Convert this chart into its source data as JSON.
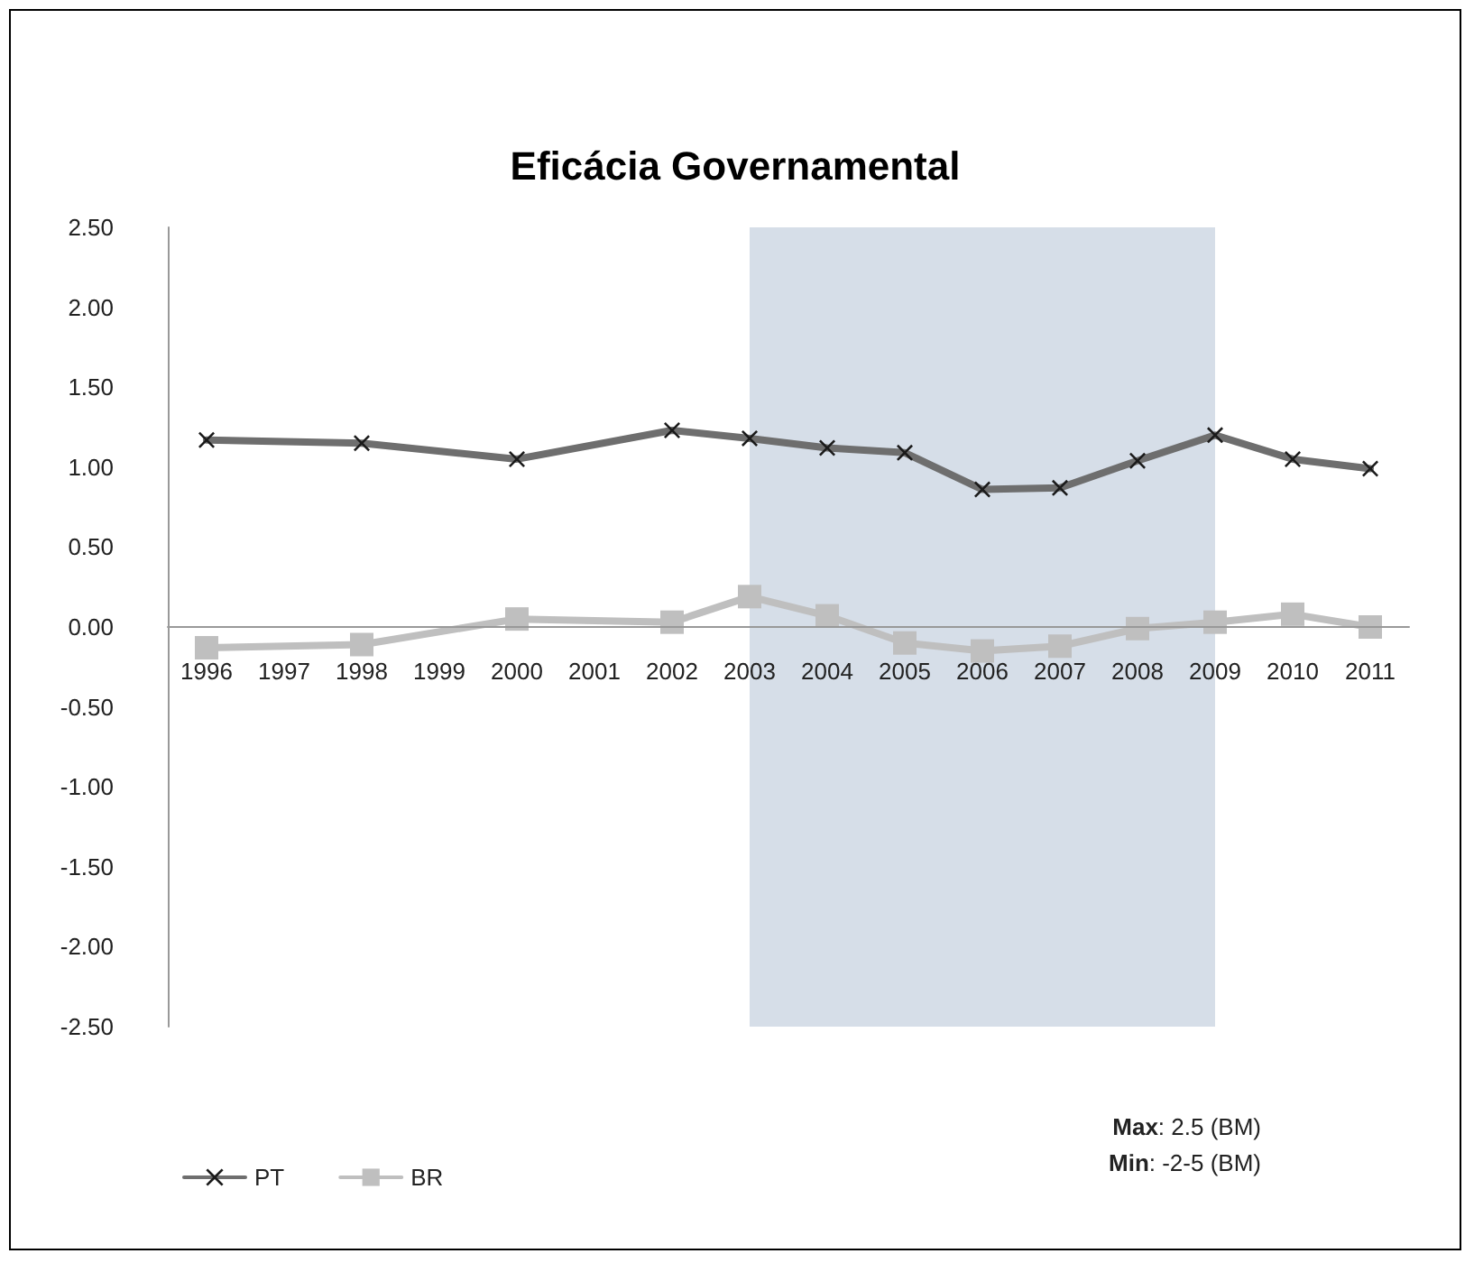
{
  "chart_data": {
    "type": "line",
    "title": "Eficácia Governamental",
    "categories": [
      "1996",
      "1997",
      "1998",
      "1999",
      "2000",
      "2001",
      "2002",
      "2003",
      "2004",
      "2005",
      "2006",
      "2007",
      "2008",
      "2009",
      "2010",
      "2011"
    ],
    "series": [
      {
        "name": "PT",
        "color": "#6e6e6e",
        "marker": "cross",
        "values": [
          1.17,
          null,
          1.15,
          null,
          1.05,
          null,
          1.23,
          1.18,
          1.12,
          1.09,
          0.86,
          0.87,
          1.04,
          1.2,
          1.05,
          0.99
        ]
      },
      {
        "name": "BR",
        "color": "#bfbfbf",
        "marker": "square",
        "values": [
          -0.13,
          null,
          -0.11,
          null,
          0.05,
          null,
          0.03,
          0.19,
          0.07,
          -0.1,
          -0.15,
          -0.12,
          -0.01,
          0.03,
          0.08,
          0.0
        ]
      }
    ],
    "ylim": [
      -2.5,
      2.5
    ],
    "yticks": [
      {
        "value": -2.5,
        "label": "-2.50"
      },
      {
        "value": -2,
        "label": "-2.00"
      },
      {
        "value": -1.5,
        "label": "-1.50"
      },
      {
        "value": -1,
        "label": "-1.00"
      },
      {
        "value": -0.5,
        "label": "-0.50"
      },
      {
        "value": 0,
        "label": "0.00"
      },
      {
        "value": 0.5,
        "label": "0.50"
      },
      {
        "value": 1,
        "label": "1.00"
      },
      {
        "value": 1.5,
        "label": "1.50"
      },
      {
        "value": 2,
        "label": "2.00"
      },
      {
        "value": 2.5,
        "label": "2.50"
      }
    ],
    "bands": [
      {
        "axis": "x",
        "from": "2003",
        "to": "2009",
        "color": "#d6dee8"
      }
    ],
    "annotations": [
      "Max: 2.5 (BM)",
      "Min: -2-5 (BM)"
    ],
    "legend": "bottom left"
  }
}
